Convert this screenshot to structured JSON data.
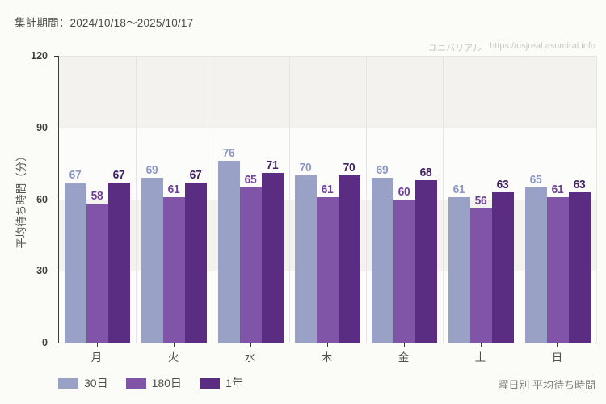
{
  "header": {
    "period_label": "集計期間：2024/10/18～2025/10/17",
    "watermark_name": "ユニバリアル",
    "watermark_url": "https://usjreal.asumirai.info"
  },
  "footer": {
    "caption": "曜日別 平均待ち時間"
  },
  "colors": {
    "page_background": "#fbfbf8",
    "band_gray": "#f3f2ef",
    "band_white": "#fcfcfa",
    "grid": "#e5e4e1",
    "axis": "#3c3c3a"
  },
  "chart_data": {
    "type": "bar",
    "title": "曜日別 平均待ち時間",
    "categories": [
      "月",
      "火",
      "水",
      "木",
      "金",
      "土",
      "日"
    ],
    "series": [
      {
        "name": "30日",
        "color": "#99a1c6",
        "label_color": "#8c97c3",
        "values": [
          67,
          69,
          76,
          70,
          69,
          61,
          65
        ]
      },
      {
        "name": "180日",
        "color": "#8055a8",
        "label_color": "#6f3f99",
        "values": [
          58,
          61,
          65,
          61,
          60,
          56,
          61
        ]
      },
      {
        "name": "1年",
        "color": "#5b2d82",
        "label_color": "#422163",
        "values": [
          67,
          67,
          71,
          70,
          68,
          63,
          63
        ]
      }
    ],
    "xlabel": "",
    "ylabel": "平均待ち時間（分）",
    "ylim": [
      0,
      120
    ],
    "yticks": [
      0,
      30,
      60,
      90,
      120
    ],
    "grid": true,
    "legend_position": "bottom-left",
    "band_pattern_from_top": [
      "gray",
      "white",
      "gray",
      "white"
    ]
  }
}
